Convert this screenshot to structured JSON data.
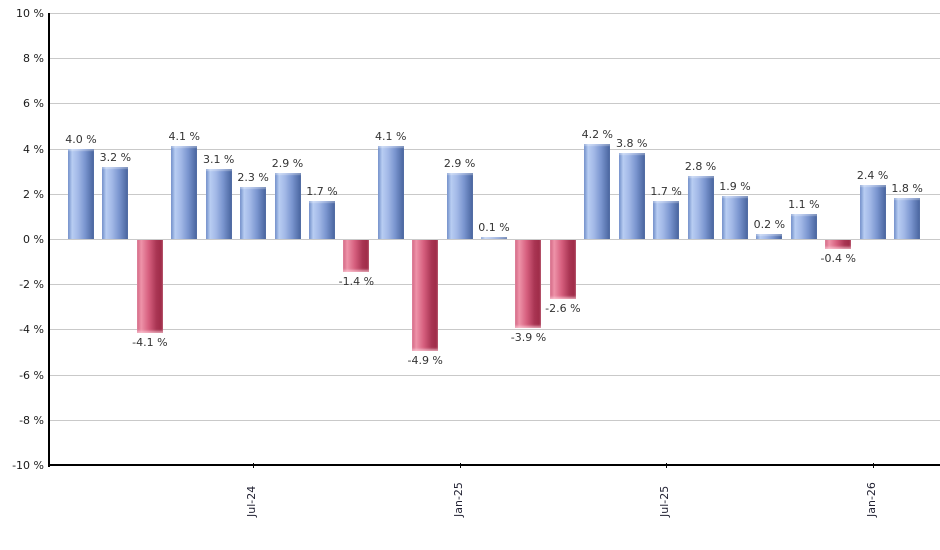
{
  "chart_data": {
    "type": "bar",
    "title": "",
    "xlabel": "",
    "ylabel": "",
    "ylim": [
      -10,
      10
    ],
    "y_tick_step": 2,
    "y_tick_suffix": " %",
    "y_tick_labels": [
      "10 %",
      "8 %",
      "6 %",
      "4 %",
      "2 %",
      "0 %",
      "-2 %",
      "-4 %",
      "-6 %",
      "-8 %",
      "-10 %"
    ],
    "values": [
      4.0,
      3.2,
      -4.1,
      4.1,
      3.1,
      2.3,
      2.9,
      1.7,
      -1.4,
      4.1,
      -4.9,
      2.9,
      0.1,
      -3.9,
      -2.6,
      4.2,
      3.8,
      1.7,
      2.8,
      1.9,
      0.2,
      1.1,
      -0.4,
      2.4,
      1.8
    ],
    "value_labels": [
      "4.0 %",
      "3.2 %",
      "-4.1 %",
      "4.1 %",
      "3.1 %",
      "2.3 %",
      "2.9 %",
      "1.7 %",
      "-1.4 %",
      "4.1 %",
      "-4.9 %",
      "2.9 %",
      "0.1 %",
      "-3.9 %",
      "-2.6 %",
      "4.2 %",
      "3.8 %",
      "1.7 %",
      "2.8 %",
      "1.9 %",
      "0.2 %",
      "1.1 %",
      "-0.4 %",
      "2.4 %",
      "1.8 %"
    ],
    "x_ticks": [
      {
        "index": 5,
        "label": "Jul-24"
      },
      {
        "index": 11,
        "label": "Jan-25"
      },
      {
        "index": 17,
        "label": "Jul-25"
      },
      {
        "index": 23,
        "label": "Jan-26"
      }
    ],
    "grid": true,
    "legend": "none",
    "colors": {
      "positive_gradient": [
        "#6e8cc8",
        "#b8cdf2",
        "#a3b9e7",
        "#7b96d0",
        "#47639d"
      ],
      "negative_gradient": [
        "#cf5f7e",
        "#ee93a9",
        "#d65f7e",
        "#a93553",
        "#9c2845"
      ],
      "gridline": "#c9c9c9",
      "axis": "#000000",
      "value_label": "#333333",
      "tick_label": "#1a1a1a"
    }
  }
}
